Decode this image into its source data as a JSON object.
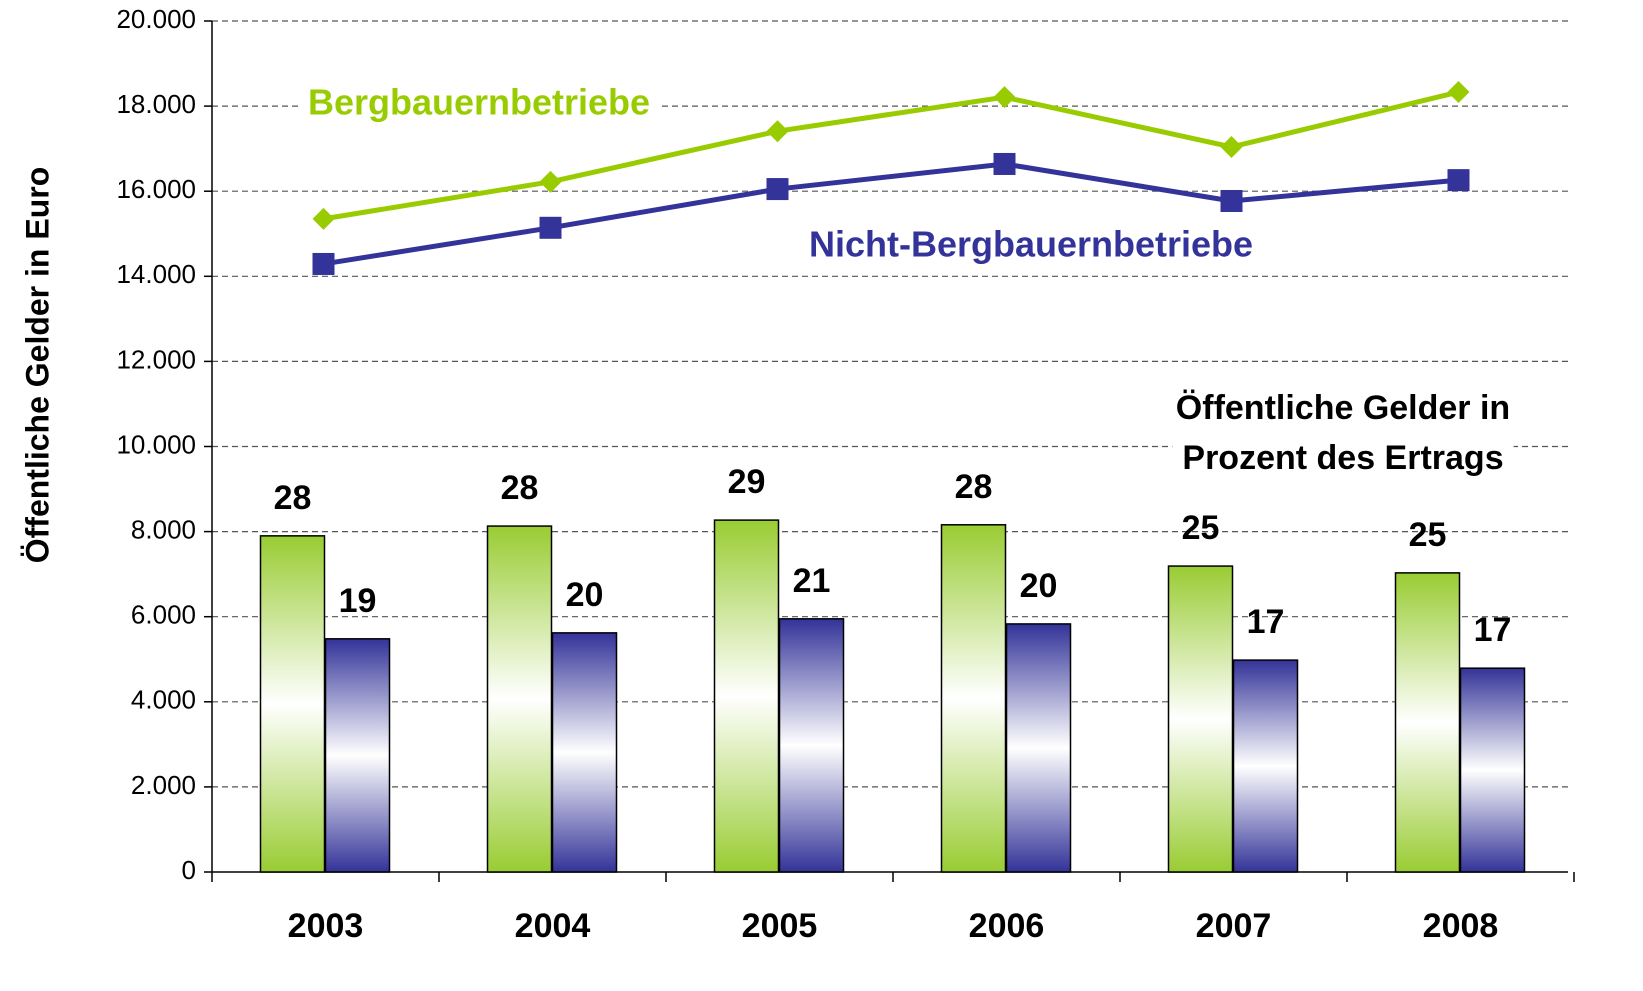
{
  "chart_data": {
    "type": "combo",
    "y_label": "Öffentliche Gelder in Euro",
    "categories": [
      "2003",
      "2004",
      "2005",
      "2006",
      "2007",
      "2008"
    ],
    "ylim": [
      0,
      20000
    ],
    "yticks": [
      0,
      {
        "value": 2000,
        "label": "2.000"
      },
      {
        "value": 4000,
        "label": "4.000"
      },
      {
        "value": 6000,
        "label": "6.000"
      },
      {
        "value": 8000,
        "label": "8.000"
      },
      {
        "value": 10000,
        "label": "10.000"
      },
      {
        "value": 12000,
        "label": "12.000"
      },
      {
        "value": 14000,
        "label": "14.000"
      },
      {
        "value": 16000,
        "label": "16.000"
      },
      {
        "value": 18000,
        "label": "18.000"
      },
      {
        "value": 20000,
        "label": "20.000"
      }
    ],
    "grid": true,
    "series": [
      {
        "name": "Bergbauernbetriebe",
        "color": "#99cc00",
        "marker": "diamond",
        "values": [
          15350,
          16220,
          17410,
          18210,
          17040,
          18330
        ]
      },
      {
        "name": "Nicht-Bergbauernbetriebe",
        "color": "#333399",
        "marker": "square",
        "values": [
          14290,
          15140,
          16050,
          16640,
          15770,
          16260
        ]
      }
    ],
    "bars": [
      {
        "color": "#99cc33",
        "values": [
          7900,
          8130,
          8270,
          8160,
          7190,
          7030
        ],
        "percent": [
          28,
          28,
          29,
          28,
          25,
          25
        ]
      },
      {
        "color": "#333399",
        "values": [
          5480,
          5620,
          5950,
          5830,
          4980,
          4790
        ],
        "percent": [
          19,
          20,
          21,
          20,
          17,
          17
        ]
      }
    ],
    "annotation": [
      "Öffentliche Gelder in",
      "Prozent des Ertrags"
    ]
  }
}
